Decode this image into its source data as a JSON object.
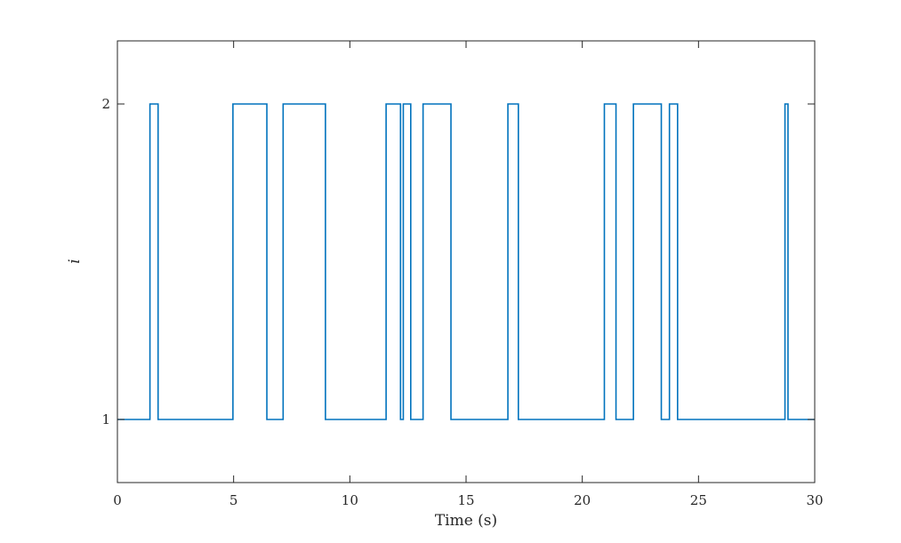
{
  "chart_data": {
    "type": "line",
    "step": true,
    "xlabel": "Time (s)",
    "ylabel": "i",
    "xlim": [
      0,
      30
    ],
    "ylim": [
      0.8,
      2.2
    ],
    "xticks": [
      0,
      5,
      10,
      15,
      20,
      25,
      30
    ],
    "xtick_labels": [
      "0",
      "5",
      "10",
      "15",
      "20",
      "25",
      "30"
    ],
    "yticks": [
      1,
      2
    ],
    "ytick_labels": [
      "1",
      "2"
    ],
    "grid": false,
    "legend": "none",
    "line_color": "#0072BD",
    "series": [
      {
        "transitions": [
          [
            0,
            1
          ],
          [
            1.4,
            2
          ],
          [
            1.75,
            1
          ],
          [
            4.97,
            2
          ],
          [
            6.43,
            1
          ],
          [
            7.13,
            2
          ],
          [
            8.95,
            1
          ],
          [
            11.56,
            2
          ],
          [
            12.18,
            1
          ],
          [
            12.3,
            2
          ],
          [
            12.62,
            1
          ],
          [
            13.15,
            2
          ],
          [
            14.35,
            1
          ],
          [
            16.8,
            2
          ],
          [
            17.25,
            1
          ],
          [
            20.95,
            2
          ],
          [
            21.45,
            1
          ],
          [
            22.2,
            2
          ],
          [
            23.4,
            1
          ],
          [
            23.75,
            2
          ],
          [
            24.1,
            1
          ],
          [
            28.72,
            2
          ],
          [
            28.85,
            1
          ]
        ],
        "x_end": 30
      }
    ]
  }
}
